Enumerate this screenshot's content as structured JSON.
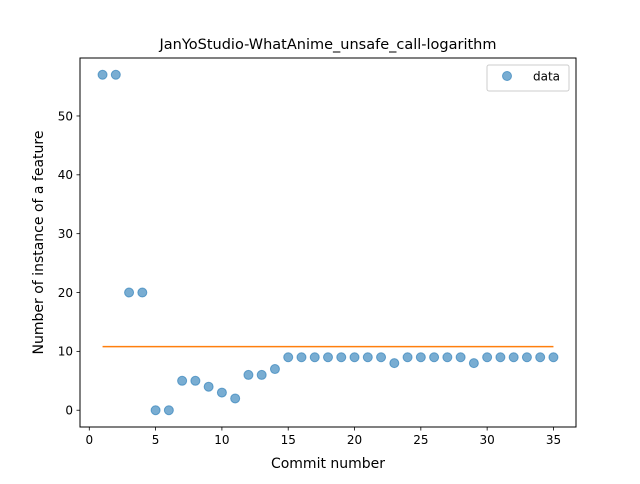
{
  "chart_data": {
    "type": "scatter",
    "title": "JanYoStudio-WhatAnime_unsafe_call-logarithm",
    "xlabel": "Commit number",
    "ylabel": "Number of instance of a feature",
    "xlim": [
      -0.7,
      36.7
    ],
    "ylim": [
      -2.85,
      59.85
    ],
    "xticks": [
      0,
      5,
      10,
      15,
      20,
      25,
      30,
      35
    ],
    "yticks": [
      0,
      10,
      20,
      30,
      40,
      50
    ],
    "grid": false,
    "legend_position": "top-right",
    "series": [
      {
        "name": "data",
        "kind": "scatter",
        "color": "#1f77b4",
        "x": [
          1,
          2,
          3,
          4,
          5,
          6,
          7,
          8,
          9,
          10,
          11,
          12,
          13,
          14,
          15,
          16,
          17,
          18,
          19,
          20,
          21,
          22,
          23,
          24,
          25,
          26,
          27,
          28,
          29,
          30,
          31,
          32,
          33,
          34,
          35
        ],
        "y": [
          57,
          57,
          20,
          20,
          0,
          0,
          5,
          5,
          4,
          3,
          2,
          6,
          6,
          7,
          9,
          9,
          9,
          9,
          9,
          9,
          9,
          9,
          8,
          9,
          9,
          9,
          9,
          9,
          8,
          9,
          9,
          9,
          9,
          9,
          9
        ]
      },
      {
        "kind": "line",
        "color": "#ff7f0e",
        "x": [
          1,
          35
        ],
        "y": [
          10.8,
          10.8
        ]
      }
    ]
  }
}
